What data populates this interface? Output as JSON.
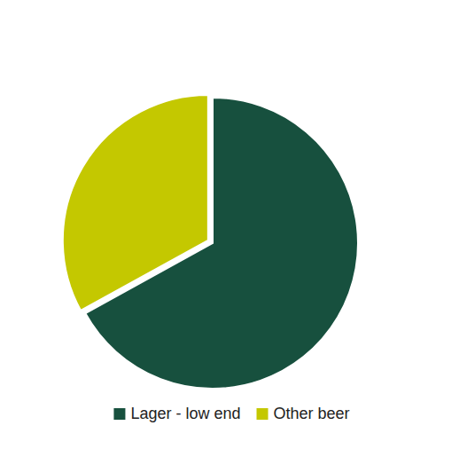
{
  "chart_data": {
    "type": "pie",
    "categories": [
      "Lager - low end",
      "Other beer"
    ],
    "values": [
      67,
      33
    ],
    "colors": [
      "#17503e",
      "#c4c800"
    ],
    "legend": "bottom"
  }
}
